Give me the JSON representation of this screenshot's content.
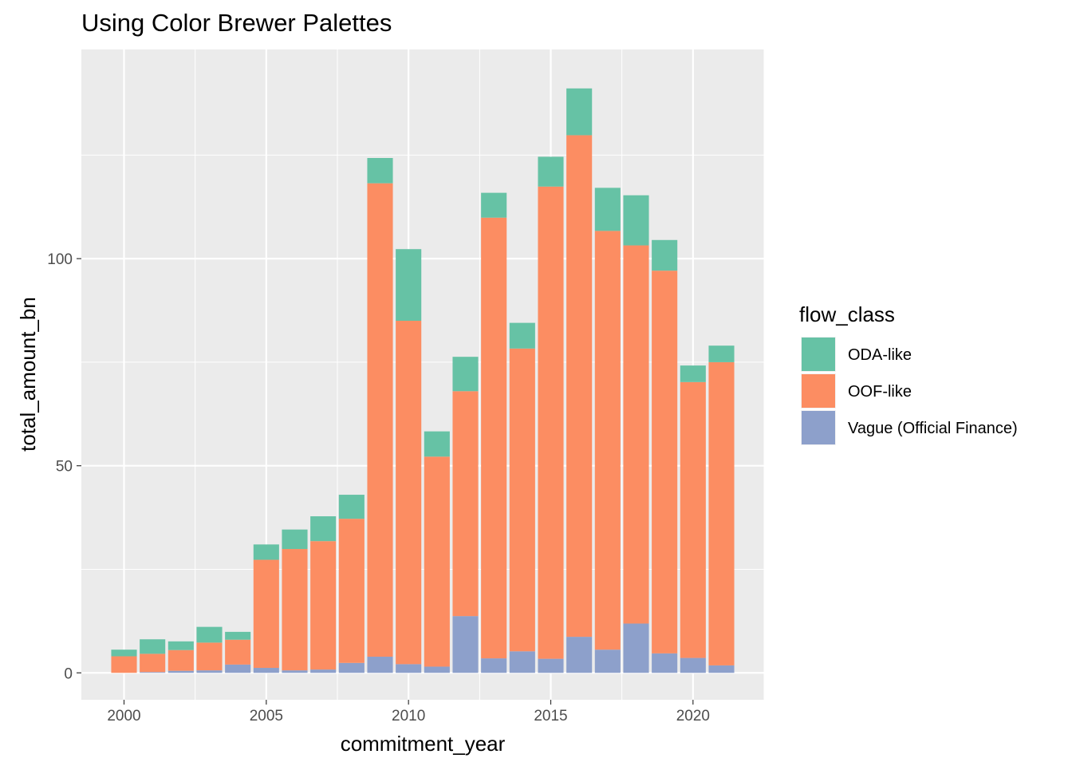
{
  "chart_data": {
    "type": "bar",
    "stacked": true,
    "title": "Using Color Brewer Palettes",
    "xlabel": "commitment_year",
    "ylabel": "total_amount_bn",
    "x": [
      2000,
      2001,
      2002,
      2003,
      2004,
      2005,
      2006,
      2007,
      2008,
      2009,
      2010,
      2011,
      2012,
      2013,
      2014,
      2015,
      2016,
      2017,
      2018,
      2019,
      2020,
      2021
    ],
    "xlim": [
      1998.5,
      2022.5
    ],
    "ylim": [
      -6.5,
      150.5
    ],
    "x_ticks": [
      2000,
      2005,
      2010,
      2015,
      2020
    ],
    "y_ticks": [
      0,
      50,
      100
    ],
    "grid": true,
    "legend": {
      "title": "flow_class",
      "position": "right"
    },
    "series": [
      {
        "name": "Vague (Official Finance)",
        "color": "#8DA0CB",
        "values": [
          0.0,
          0.2,
          0.5,
          0.6,
          2.0,
          1.2,
          0.6,
          0.8,
          2.4,
          3.9,
          2.1,
          1.5,
          13.7,
          3.5,
          5.2,
          3.4,
          8.7,
          5.6,
          11.9,
          4.7,
          3.6,
          1.8
        ]
      },
      {
        "name": "OOF-like",
        "color": "#FC8D62",
        "values": [
          4.0,
          4.4,
          5.0,
          6.7,
          6.0,
          26.1,
          29.3,
          31.0,
          34.8,
          114.3,
          82.9,
          50.7,
          54.3,
          106.4,
          73.1,
          114.0,
          121.1,
          101.1,
          91.3,
          92.4,
          66.6,
          73.2
        ]
      },
      {
        "name": "ODA-like",
        "color": "#66C2A5",
        "values": [
          1.6,
          3.5,
          2.1,
          3.8,
          1.9,
          3.7,
          4.7,
          6.0,
          5.8,
          6.1,
          17.3,
          6.1,
          8.3,
          6.0,
          6.2,
          7.2,
          11.3,
          10.4,
          12.1,
          7.4,
          4.0,
          4.0
        ]
      }
    ],
    "legend_order": [
      "ODA-like",
      "OOF-like",
      "Vague (Official Finance)"
    ]
  }
}
